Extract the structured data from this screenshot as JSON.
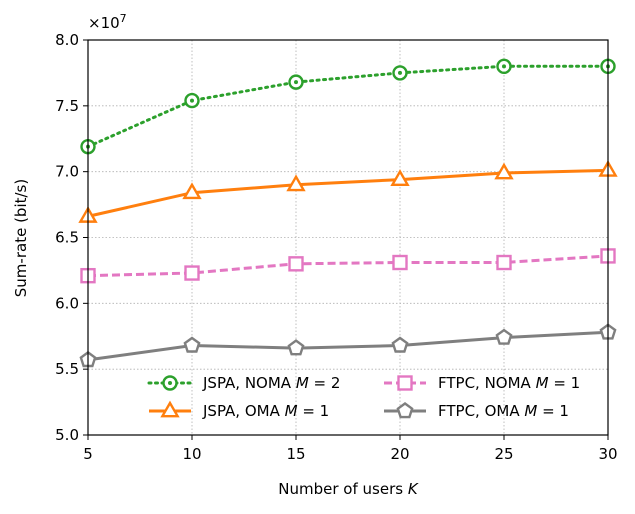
{
  "chart_data": {
    "type": "line",
    "title": "",
    "xlabel": "Number of users",
    "xlabel_var": "K",
    "ylabel": "Sum-rate (bit/s)",
    "y_multiplier": "×10",
    "y_multiplier_exp": "7",
    "x": [
      5,
      10,
      15,
      20,
      25,
      30
    ],
    "xlim": [
      5,
      30
    ],
    "ylim": [
      5.0,
      8.0
    ],
    "x_ticks": [
      "5",
      "10",
      "15",
      "20",
      "25",
      "30"
    ],
    "y_ticks": [
      "5.0",
      "5.5",
      "6.0",
      "6.5",
      "7.0",
      "7.5",
      "8.0"
    ],
    "grid": true,
    "legend_position": "lower-center",
    "series": [
      {
        "name": "JSPA, NOMA",
        "cond": "M = 2",
        "color": "#2ca02c",
        "dash": "dotted",
        "marker": "circle-dot",
        "values": [
          7.19,
          7.54,
          7.68,
          7.75,
          7.8,
          7.8
        ]
      },
      {
        "name": "JSPA, OMA",
        "cond": "M = 1",
        "color": "#ff7f0e",
        "dash": "solid",
        "marker": "triangle",
        "values": [
          6.66,
          6.84,
          6.9,
          6.94,
          6.99,
          7.01
        ]
      },
      {
        "name": "FTPC, NOMA",
        "cond": "M = 1",
        "color": "#e377c2",
        "dash": "dashed",
        "marker": "square",
        "values": [
          6.21,
          6.23,
          6.3,
          6.31,
          6.31,
          6.36
        ]
      },
      {
        "name": "FTPC, OMA",
        "cond": "M = 1",
        "color": "#7f7f7f",
        "dash": "solid",
        "marker": "pentagon",
        "values": [
          5.57,
          5.68,
          5.66,
          5.68,
          5.74,
          5.78
        ]
      }
    ]
  }
}
